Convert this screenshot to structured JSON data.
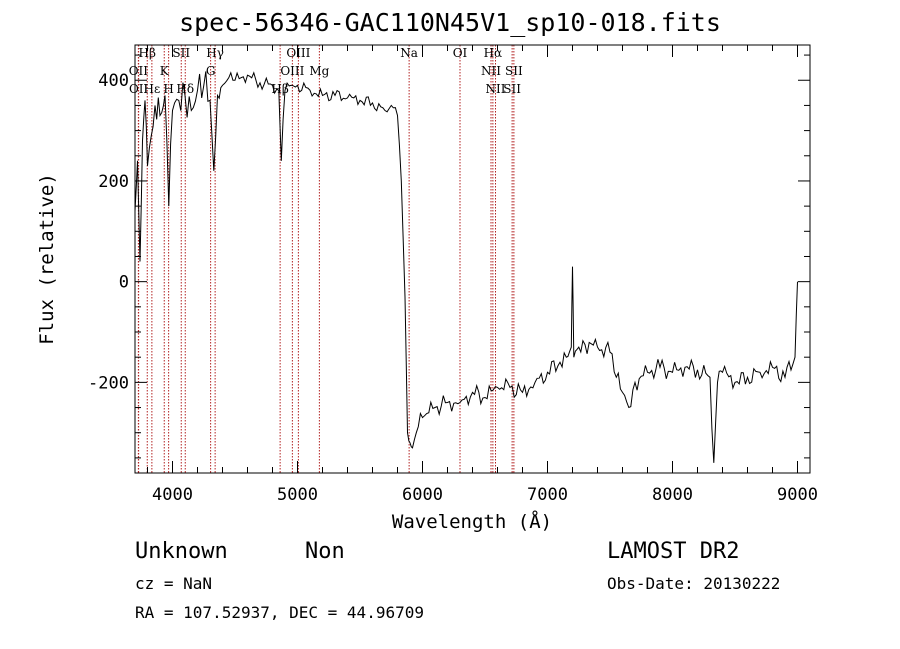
{
  "header": {
    "title": "spec-56346-GAC110N45V1_sp10-018.fits"
  },
  "info": {
    "class": "Unknown",
    "subclass": "Non",
    "survey": "LAMOST DR2",
    "cz": "cz = NaN",
    "obs_date": "Obs-Date: 20130222",
    "ra_dec": "RA = 107.52937, DEC =  44.96709"
  },
  "chart_data": {
    "type": "line",
    "title": "spec-56346-GAC110N45V1_sp10-018.fits",
    "xlabel": "Wavelength (Å)",
    "ylabel": "Flux (relative)",
    "xlim": [
      3700,
      9100
    ],
    "ylim": [
      -380,
      470
    ],
    "xticks": [
      4000,
      5000,
      6000,
      7000,
      8000,
      9000
    ],
    "yticks": [
      -200,
      0,
      200,
      400
    ],
    "grid": false,
    "line_color": "#000000",
    "marker_color": "#b22222",
    "line_markers": [
      {
        "label": "Hβ",
        "x": 3798
      },
      {
        "label": "OII",
        "x": 3727
      },
      {
        "label": "OII",
        "x": 3729
      },
      {
        "label": "Hε",
        "x": 3835
      },
      {
        "label": "K",
        "x": 3934
      },
      {
        "label": "H",
        "x": 3969
      },
      {
        "label": "SII",
        "x": 4070
      },
      {
        "label": "Hδ",
        "x": 4102
      },
      {
        "label": "Hγ",
        "x": 4341
      },
      {
        "label": "G",
        "x": 4305
      },
      {
        "label": "OIII",
        "x": 5007
      },
      {
        "label": "OIII",
        "x": 4959
      },
      {
        "label": "Hβ",
        "x": 4861
      },
      {
        "label": "Mg",
        "x": 5175
      },
      {
        "label": "Na",
        "x": 5893
      },
      {
        "label": "OI",
        "x": 6300
      },
      {
        "label": "Hα",
        "x": 6563
      },
      {
        "label": "NII",
        "x": 6548
      },
      {
        "label": "NII",
        "x": 6584
      },
      {
        "label": "SII",
        "x": 6717
      },
      {
        "label": "SII",
        "x": 6731
      }
    ],
    "series": [
      {
        "x": [
          3700,
          3720,
          3740,
          3760,
          3780,
          3800,
          3830,
          3860,
          3900,
          3940,
          3970,
          4000,
          4050,
          4100,
          4150,
          4200,
          4250,
          4300,
          4330,
          4360,
          4400,
          4450,
          4500,
          4600,
          4700,
          4800,
          4850,
          4870,
          4900,
          4950,
          5000,
          5100,
          5200,
          5300,
          5400,
          5500,
          5600,
          5700,
          5750,
          5800,
          5830,
          5860,
          5880,
          5900,
          5920,
          5950,
          6000,
          6100,
          6200,
          6300,
          6400,
          6500,
          6600,
          6700,
          6800,
          6900,
          7000,
          7100,
          7150,
          7190,
          7200,
          7210,
          7250,
          7300,
          7400,
          7500,
          7550,
          7600,
          7650,
          7700,
          7800,
          7900,
          8000,
          8100,
          8200,
          8300,
          8330,
          8360,
          8400,
          8500,
          8600,
          8700,
          8800,
          8900,
          8980,
          9000
        ],
        "y": [
          140,
          240,
          40,
          280,
          360,
          230,
          290,
          350,
          330,
          370,
          150,
          340,
          360,
          370,
          340,
          380,
          390,
          360,
          220,
          370,
          390,
          405,
          400,
          410,
          395,
          390,
          380,
          240,
          380,
          390,
          390,
          380,
          370,
          370,
          365,
          360,
          355,
          340,
          350,
          330,
          200,
          -30,
          -300,
          -320,
          -330,
          -300,
          -270,
          -250,
          -240,
          -240,
          -220,
          -230,
          -210,
          -210,
          -220,
          -200,
          -180,
          -160,
          -150,
          -130,
          30,
          -150,
          -130,
          -125,
          -130,
          -140,
          -190,
          -220,
          -250,
          -200,
          -180,
          -170,
          -180,
          -170,
          -175,
          -190,
          -360,
          -200,
          -180,
          -200,
          -190,
          -180,
          -170,
          -190,
          -150,
          0
        ]
      }
    ]
  }
}
